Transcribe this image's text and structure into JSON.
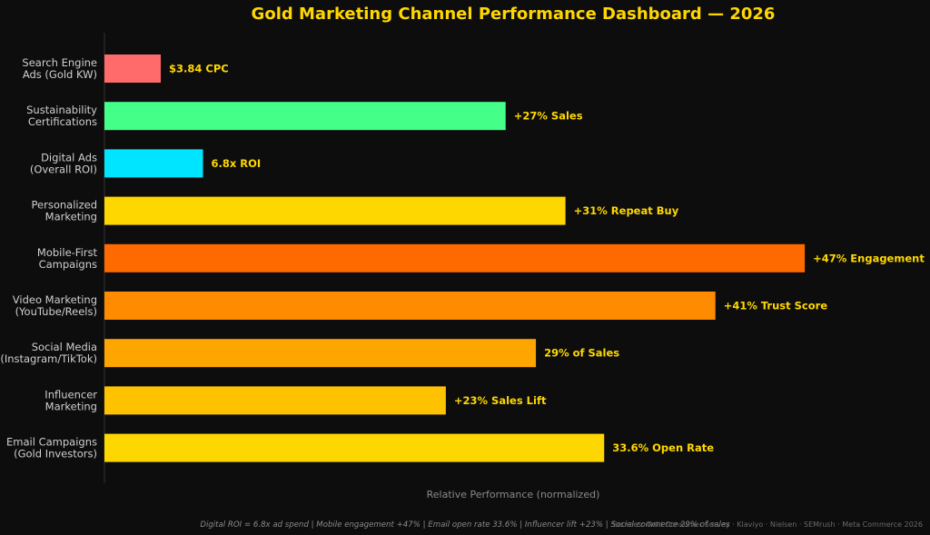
{
  "chart_data": {
    "type": "bar",
    "orientation": "horizontal",
    "title": "Gold Marketing Channel Performance Dashboard — 2026",
    "xlabel": "Relative Performance (normalized)",
    "ylabel": "",
    "grid": false,
    "categories": [
      [
        "Search Engine",
        "Ads (Gold KW)"
      ],
      [
        "Sustainability",
        "Certifications"
      ],
      [
        "Digital Ads",
        "(Overall ROI)"
      ],
      [
        "Personalized",
        "Marketing"
      ],
      [
        "Mobile-First",
        "Campaigns"
      ],
      [
        "Video Marketing",
        "(YouTube/Reels)"
      ],
      [
        "Social Media",
        "(Instagram/TikTok)"
      ],
      [
        "Influencer",
        "Marketing"
      ],
      [
        "Email Campaigns",
        "(Gold Investors)"
      ]
    ],
    "values": [
      8,
      57,
      14,
      65.5,
      99.5,
      86.8,
      61.3,
      48.5,
      71
    ],
    "xlim": [
      0,
      100
    ],
    "data_labels": [
      "$3.84 CPC",
      "+27% Sales",
      "6.8x ROI",
      "+31% Repeat Buy",
      "+47% Engagement",
      "+41% Trust Score",
      "29% of Sales",
      "+23% Sales Lift",
      "33.6% Open Rate"
    ],
    "bar_colors": [
      "#ff6b6b",
      "#44ff88",
      "#00e5ff",
      "#ffd700",
      "#ff6a00",
      "#ff8c00",
      "#ffa500",
      "#ffc200",
      "#ffd700"
    ]
  },
  "footnote": "Digital ROI = 6.8x ad spend  |  Mobile engagement +47%  |  Email open rate 33.6%  |  Influencer lift +23%  |  Social commerce 29% of sales",
  "source": "Sources: Gold Consumer Survey · Klaviyo · Nielsen · SEMrush · Meta Commerce 2026",
  "colors": {
    "background": "#0d0d0d",
    "title": "#ffd700",
    "data_label": "#ffd700",
    "axis_line": "#333333"
  }
}
